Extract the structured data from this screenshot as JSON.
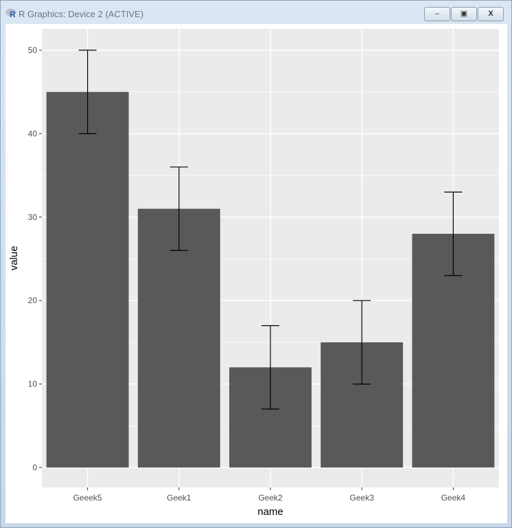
{
  "window": {
    "title": "R Graphics: Device 2 (ACTIVE)",
    "minimize": "‒",
    "maximize": "▣",
    "close": "X"
  },
  "chart_data": {
    "type": "bar",
    "categories": [
      "Geeek5",
      "Geek1",
      "Geek2",
      "Geek3",
      "Geek4"
    ],
    "values": [
      45,
      31,
      12,
      15,
      28
    ],
    "error_lower": [
      40,
      26,
      7,
      10,
      23
    ],
    "error_upper": [
      50,
      36,
      17,
      20,
      33
    ],
    "xlabel": "name",
    "ylabel": "value",
    "yticks": [
      0,
      10,
      20,
      30,
      40,
      50
    ],
    "ylim": [
      -2.4,
      52.6
    ],
    "grid": true,
    "colors": {
      "bar": "#595959",
      "panel": "#ebebeb",
      "grid": "#ffffff",
      "error": "#000000"
    }
  }
}
